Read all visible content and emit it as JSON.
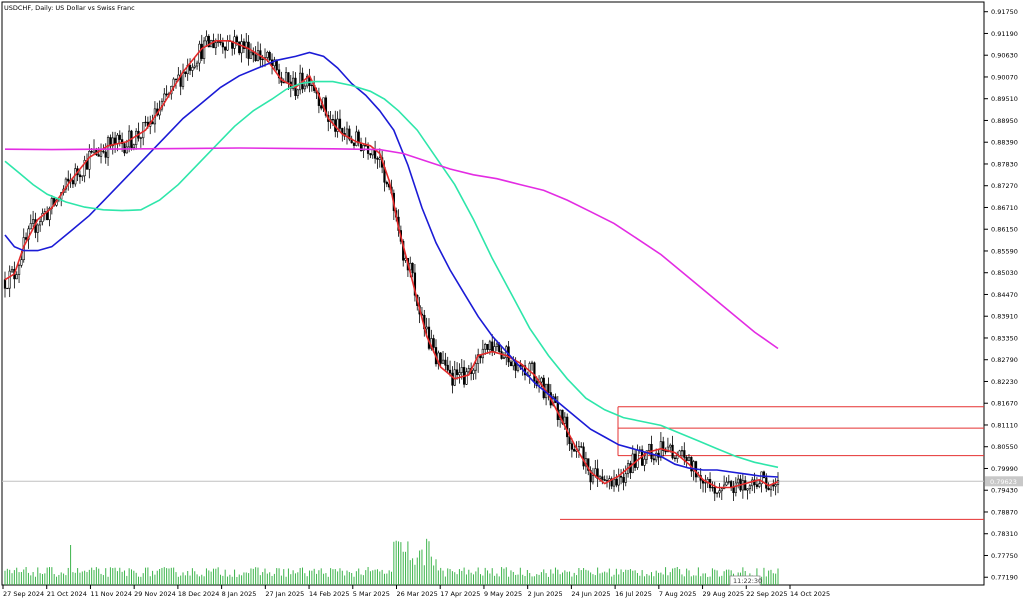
{
  "chart_data": {
    "type": "candlestick",
    "title": "USDCHF, Daily: US Dollar vs Swiss Franc",
    "y_axis": {
      "ticks": [
        "0.91750",
        "0.91190",
        "0.90630",
        "0.90070",
        "0.89510",
        "0.88950",
        "0.88390",
        "0.87830",
        "0.87270",
        "0.86710",
        "0.86150",
        "0.85590",
        "0.85030",
        "0.84470",
        "0.83910",
        "0.83350",
        "0.82790",
        "0.82230",
        "0.81670",
        "0.81110",
        "0.80550",
        "0.79990",
        "0.79430",
        "0.78870",
        "0.78310",
        "0.77750",
        "0.77190"
      ],
      "ylim": [
        0.7699,
        0.92
      ]
    },
    "x_axis": {
      "ticks": [
        "27 Sep 2024",
        "21 Oct 2024",
        "11 Nov 2024",
        "29 Nov 2024",
        "18 Dec 2024",
        "8 Jan 2025",
        "27 Jan 2025",
        "14 Feb 2025",
        "5 Mar 2025",
        "26 Mar 2025",
        "17 Apr 2025",
        "9 May 2025",
        "2 Jun 2025",
        "24 Jun 2025",
        "16 Jul 2025",
        "7 Aug 2025",
        "29 Aug 2025",
        "22 Sep 2025",
        "14 Oct 2025"
      ]
    },
    "current_price": "0.79623",
    "time_tag": "11:22:30",
    "horizontal_levels": [
      0.8158,
      0.8103,
      0.8032,
      0.7966,
      0.7868
    ],
    "series": [
      {
        "color": "#e52a2a",
        "points": [
          [
            0,
            0.8485
          ],
          [
            4,
            0.85
          ],
          [
            8,
            0.857
          ],
          [
            14,
            0.864
          ],
          [
            20,
            0.867
          ],
          [
            28,
            0.874
          ],
          [
            36,
            0.88
          ],
          [
            44,
            0.883
          ],
          [
            52,
            0.884
          ],
          [
            60,
            0.887
          ],
          [
            68,
            0.894
          ],
          [
            76,
            0.902
          ],
          [
            84,
            0.908
          ],
          [
            90,
            0.91
          ],
          [
            96,
            0.91
          ],
          [
            104,
            0.908
          ],
          [
            112,
            0.905
          ],
          [
            118,
            0.9
          ],
          [
            124,
            0.898
          ],
          [
            130,
            0.901
          ],
          [
            134,
            0.896
          ],
          [
            138,
            0.89
          ],
          [
            144,
            0.886
          ],
          [
            150,
            0.884
          ],
          [
            156,
            0.883
          ],
          [
            160,
            0.881
          ],
          [
            164,
            0.874
          ],
          [
            168,
            0.862
          ],
          [
            174,
            0.848
          ],
          [
            180,
            0.834
          ],
          [
            186,
            0.826
          ],
          [
            192,
            0.823
          ],
          [
            198,
            0.824
          ],
          [
            202,
            0.829
          ],
          [
            208,
            0.83
          ],
          [
            214,
            0.829
          ],
          [
            220,
            0.827
          ],
          [
            226,
            0.824
          ],
          [
            232,
            0.819
          ],
          [
            238,
            0.812
          ],
          [
            244,
            0.805
          ],
          [
            250,
            0.799
          ],
          [
            256,
            0.796
          ],
          [
            262,
            0.798
          ],
          [
            268,
            0.801
          ],
          [
            274,
            0.804
          ],
          [
            280,
            0.805
          ],
          [
            286,
            0.804
          ],
          [
            292,
            0.801
          ],
          [
            298,
            0.797
          ],
          [
            304,
            0.795
          ],
          [
            310,
            0.795
          ],
          [
            316,
            0.796
          ],
          [
            322,
            0.797
          ],
          [
            326,
            0.7955
          ],
          [
            330,
            0.7965
          ]
        ]
      },
      {
        "color": "#1b1bd6",
        "points": [
          [
            0,
            0.86
          ],
          [
            4,
            0.857
          ],
          [
            8,
            0.856
          ],
          [
            14,
            0.856
          ],
          [
            20,
            0.857
          ],
          [
            28,
            0.861
          ],
          [
            36,
            0.865
          ],
          [
            44,
            0.87
          ],
          [
            52,
            0.875
          ],
          [
            60,
            0.88
          ],
          [
            68,
            0.885
          ],
          [
            76,
            0.89
          ],
          [
            84,
            0.894
          ],
          [
            92,
            0.898
          ],
          [
            100,
            0.901
          ],
          [
            108,
            0.903
          ],
          [
            116,
            0.905
          ],
          [
            124,
            0.906
          ],
          [
            130,
            0.907
          ],
          [
            136,
            0.906
          ],
          [
            142,
            0.903
          ],
          [
            148,
            0.899
          ],
          [
            154,
            0.896
          ],
          [
            160,
            0.892
          ],
          [
            166,
            0.887
          ],
          [
            172,
            0.878
          ],
          [
            178,
            0.867
          ],
          [
            184,
            0.858
          ],
          [
            190,
            0.851
          ],
          [
            196,
            0.845
          ],
          [
            202,
            0.839
          ],
          [
            208,
            0.834
          ],
          [
            214,
            0.83
          ],
          [
            220,
            0.826
          ],
          [
            226,
            0.822
          ],
          [
            232,
            0.819
          ],
          [
            238,
            0.816
          ],
          [
            244,
            0.813
          ],
          [
            250,
            0.81
          ],
          [
            256,
            0.808
          ],
          [
            262,
            0.806
          ],
          [
            268,
            0.805
          ],
          [
            274,
            0.804
          ],
          [
            280,
            0.803
          ],
          [
            286,
            0.801
          ],
          [
            292,
            0.8
          ],
          [
            298,
            0.7995
          ],
          [
            304,
            0.7995
          ],
          [
            310,
            0.799
          ],
          [
            316,
            0.7985
          ],
          [
            322,
            0.798
          ],
          [
            330,
            0.7977
          ]
        ]
      },
      {
        "color": "#2ee6aa",
        "points": [
          [
            0,
            0.879
          ],
          [
            6,
            0.876
          ],
          [
            12,
            0.873
          ],
          [
            18,
            0.8705
          ],
          [
            26,
            0.8685
          ],
          [
            34,
            0.8672
          ],
          [
            42,
            0.8665
          ],
          [
            50,
            0.8663
          ],
          [
            58,
            0.8665
          ],
          [
            66,
            0.869
          ],
          [
            74,
            0.873
          ],
          [
            82,
            0.878
          ],
          [
            90,
            0.883
          ],
          [
            98,
            0.888
          ],
          [
            106,
            0.892
          ],
          [
            114,
            0.895
          ],
          [
            120,
            0.8975
          ],
          [
            126,
            0.899
          ],
          [
            132,
            0.8995
          ],
          [
            140,
            0.8995
          ],
          [
            148,
            0.8985
          ],
          [
            156,
            0.897
          ],
          [
            162,
            0.895
          ],
          [
            168,
            0.892
          ],
          [
            176,
            0.887
          ],
          [
            184,
            0.88
          ],
          [
            192,
            0.873
          ],
          [
            200,
            0.864
          ],
          [
            208,
            0.854
          ],
          [
            216,
            0.845
          ],
          [
            224,
            0.836
          ],
          [
            232,
            0.829
          ],
          [
            240,
            0.823
          ],
          [
            248,
            0.818
          ],
          [
            256,
            0.815
          ],
          [
            264,
            0.813
          ],
          [
            272,
            0.812
          ],
          [
            280,
            0.811
          ],
          [
            288,
            0.809
          ],
          [
            296,
            0.807
          ],
          [
            304,
            0.805
          ],
          [
            312,
            0.803
          ],
          [
            320,
            0.8015
          ],
          [
            330,
            0.8002
          ]
        ]
      },
      {
        "color": "#e32ce3",
        "points": [
          [
            0,
            0.8821
          ],
          [
            20,
            0.882
          ],
          [
            40,
            0.8821
          ],
          [
            60,
            0.8822
          ],
          [
            80,
            0.8823
          ],
          [
            100,
            0.8824
          ],
          [
            120,
            0.8823
          ],
          [
            140,
            0.8822
          ],
          [
            160,
            0.882
          ],
          [
            170,
            0.881
          ],
          [
            180,
            0.879
          ],
          [
            190,
            0.877
          ],
          [
            200,
            0.8755
          ],
          [
            210,
            0.8745
          ],
          [
            220,
            0.873
          ],
          [
            230,
            0.8715
          ],
          [
            240,
            0.869
          ],
          [
            250,
            0.866
          ],
          [
            260,
            0.863
          ],
          [
            270,
            0.859
          ],
          [
            280,
            0.855
          ],
          [
            290,
            0.85
          ],
          [
            300,
            0.845
          ],
          [
            310,
            0.84
          ],
          [
            320,
            0.835
          ],
          [
            330,
            0.8308
          ]
        ]
      }
    ]
  }
}
